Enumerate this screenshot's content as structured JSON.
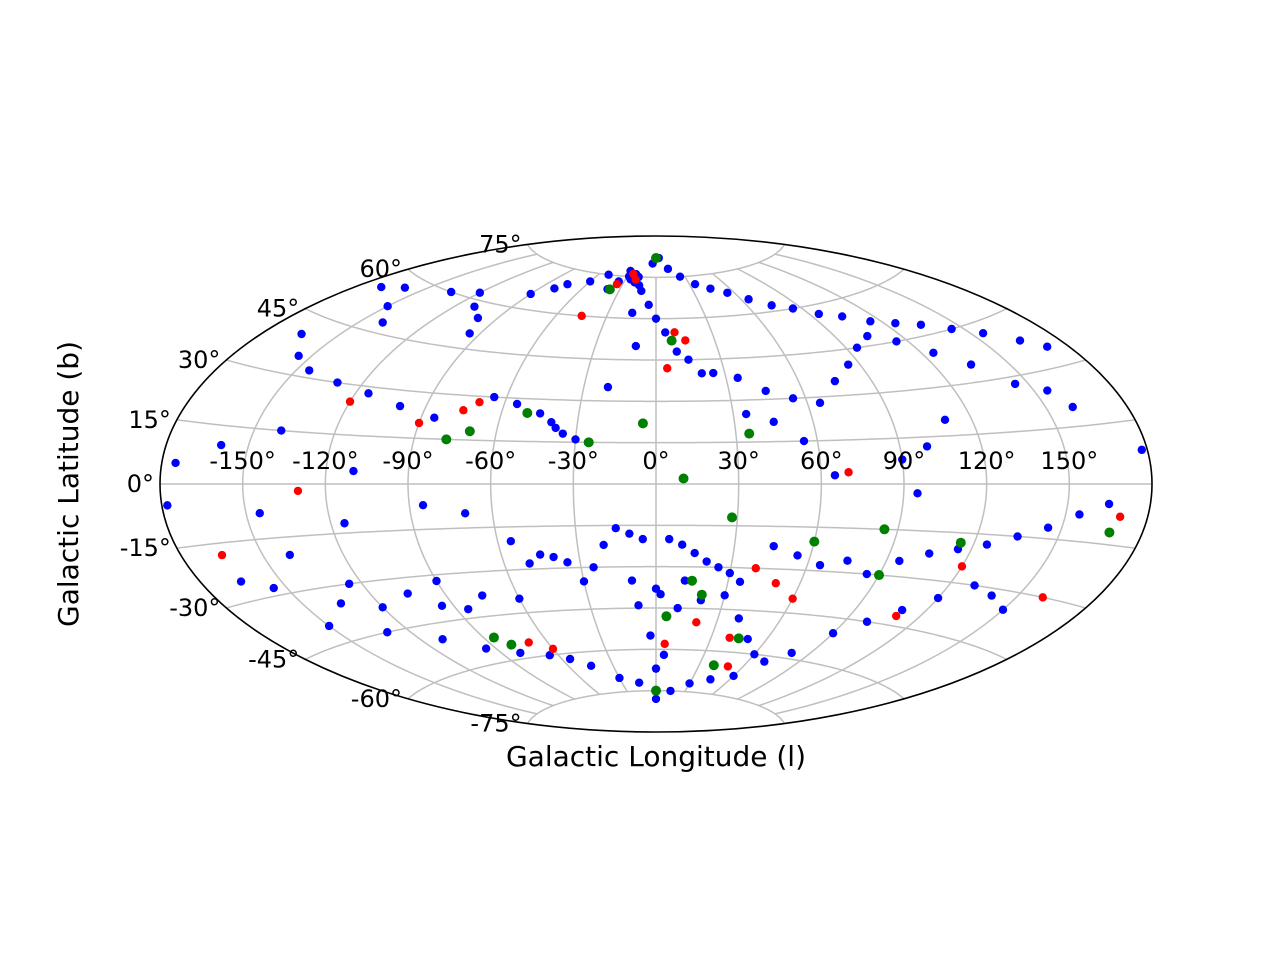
{
  "chart_data": {
    "type": "scatter",
    "projection": "aitoff",
    "title": "",
    "xlabel": "Galactic Longitude (l)",
    "ylabel": "Galactic Latitude (b)",
    "xlim": [
      -180,
      180
    ],
    "ylim": [
      -90,
      90
    ],
    "grid": true,
    "legend": "none",
    "x_ticks": [
      -150,
      -120,
      -90,
      -60,
      -30,
      0,
      30,
      60,
      90,
      120,
      150
    ],
    "x_tick_labels": [
      "-150°",
      "-120°",
      "-90°",
      "-60°",
      "-30°",
      "0°",
      "30°",
      "60°",
      "90°",
      "120°",
      "150°"
    ],
    "y_ticks": [
      -75,
      -60,
      -45,
      -30,
      -15,
      0,
      15,
      30,
      45,
      60,
      75
    ],
    "y_tick_labels": [
      "-75°",
      "-60°",
      "-45°",
      "-30°",
      "-15°",
      "0°",
      "15°",
      "30°",
      "45°",
      "60°",
      "75°"
    ],
    "colors": {
      "blue": "#0000ff",
      "red": "#ff0000",
      "green": "#008000",
      "grid": "#bfbfbf",
      "frame": "#000000"
    },
    "series": [
      {
        "color": "#0000ff",
        "points": [
          [
            -170,
            55
          ],
          [
            -160,
            57
          ],
          [
            -150,
            52
          ],
          [
            -140,
            48
          ],
          [
            -135,
            60
          ],
          [
            -120,
            62
          ],
          [
            -110,
            58
          ],
          [
            -100,
            55
          ],
          [
            -95,
            50
          ],
          [
            -90,
            65
          ],
          [
            -80,
            68
          ],
          [
            -75,
            70
          ],
          [
            -60,
            72
          ],
          [
            -50,
            75
          ],
          [
            -40,
            70
          ],
          [
            -35,
            73
          ],
          [
            -30,
            77
          ],
          [
            -28,
            75
          ],
          [
            -25,
            74
          ],
          [
            -22,
            76
          ],
          [
            -20,
            73
          ],
          [
            -18,
            75
          ],
          [
            -15,
            72
          ],
          [
            -12,
            70
          ],
          [
            -5,
            80
          ],
          [
            5,
            82
          ],
          [
            15,
            78
          ],
          [
            25,
            75
          ],
          [
            35,
            72
          ],
          [
            45,
            70
          ],
          [
            55,
            68
          ],
          [
            65,
            65
          ],
          [
            75,
            62
          ],
          [
            85,
            60
          ],
          [
            95,
            57
          ],
          [
            105,
            55
          ],
          [
            115,
            52
          ],
          [
            125,
            50
          ],
          [
            135,
            48
          ],
          [
            145,
            45
          ],
          [
            155,
            42
          ],
          [
            165,
            38
          ],
          [
            172,
            35
          ],
          [
            -165,
            40
          ],
          [
            -155,
            35
          ],
          [
            -145,
            32
          ],
          [
            -130,
            30
          ],
          [
            -115,
            28
          ],
          [
            -100,
            25
          ],
          [
            -85,
            22
          ],
          [
            -65,
            30
          ],
          [
            -55,
            28
          ],
          [
            -45,
            25
          ],
          [
            -40,
            22
          ],
          [
            -38,
            20
          ],
          [
            -35,
            18
          ],
          [
            -30,
            16
          ],
          [
            -20,
            35
          ],
          [
            -10,
            50
          ],
          [
            5,
            55
          ],
          [
            15,
            45
          ],
          [
            25,
            40
          ],
          [
            35,
            38
          ],
          [
            45,
            33
          ],
          [
            55,
            30
          ],
          [
            65,
            28
          ],
          [
            75,
            35
          ],
          [
            85,
            40
          ],
          [
            95,
            45
          ],
          [
            105,
            48
          ],
          [
            115,
            45
          ],
          [
            125,
            40
          ],
          [
            135,
            35
          ],
          [
            145,
            28
          ],
          [
            155,
            25
          ],
          [
            160,
            20
          ],
          [
            110,
            20
          ],
          [
            100,
            12
          ],
          [
            90,
            8
          ],
          [
            55,
            15
          ],
          [
            45,
            22
          ],
          [
            35,
            25
          ],
          [
            20,
            40
          ],
          [
            10,
            48
          ],
          [
            0,
            60
          ],
          [
            -5,
            65
          ],
          [
            -15,
            62
          ],
          [
            -140,
            15
          ],
          [
            -160,
            10
          ],
          [
            -175,
            5
          ],
          [
            178,
            8
          ],
          [
            65,
            3
          ],
          [
            95,
            -3
          ],
          [
            -110,
            4
          ],
          [
            -178,
            -5
          ],
          [
            -145,
            -8
          ],
          [
            -115,
            -12
          ],
          [
            -85,
            -7
          ],
          [
            -70,
            -10
          ],
          [
            -55,
            -20
          ],
          [
            -45,
            -25
          ],
          [
            -35,
            -28
          ],
          [
            -25,
            -30
          ],
          [
            -20,
            -22
          ],
          [
            -15,
            -16
          ],
          [
            -10,
            -18
          ],
          [
            -5,
            -20
          ],
          [
            5,
            -20
          ],
          [
            10,
            -22
          ],
          [
            15,
            -25
          ],
          [
            20,
            -28
          ],
          [
            25,
            -30
          ],
          [
            30,
            -32
          ],
          [
            35,
            -35
          ],
          [
            45,
            -22
          ],
          [
            55,
            -25
          ],
          [
            65,
            -28
          ],
          [
            75,
            -26
          ],
          [
            85,
            -30
          ],
          [
            95,
            -25
          ],
          [
            105,
            -22
          ],
          [
            115,
            -20
          ],
          [
            125,
            -18
          ],
          [
            135,
            -15
          ],
          [
            145,
            -12
          ],
          [
            155,
            -8
          ],
          [
            165,
            -5
          ],
          [
            -165,
            -25
          ],
          [
            -155,
            -28
          ],
          [
            -140,
            -20
          ],
          [
            -125,
            -30
          ],
          [
            -105,
            -35
          ],
          [
            -90,
            -32
          ],
          [
            -75,
            -38
          ],
          [
            -60,
            -40
          ],
          [
            -50,
            -28
          ],
          [
            -40,
            -26
          ],
          [
            -30,
            -35
          ],
          [
            -10,
            -35
          ],
          [
            0,
            -38
          ],
          [
            10,
            -45
          ],
          [
            20,
            -42
          ],
          [
            30,
            -40
          ],
          [
            40,
            -48
          ],
          [
            50,
            -55
          ],
          [
            60,
            -60
          ],
          [
            70,
            -62
          ],
          [
            80,
            -58
          ],
          [
            90,
            -50
          ],
          [
            100,
            -45
          ],
          [
            110,
            -40
          ],
          [
            120,
            -35
          ],
          [
            130,
            -30
          ],
          [
            140,
            -32
          ],
          [
            150,
            -35
          ],
          [
            -150,
            -40
          ],
          [
            -130,
            -45
          ],
          [
            -110,
            -50
          ],
          [
            -95,
            -55
          ],
          [
            -80,
            -58
          ],
          [
            -65,
            -60
          ],
          [
            -55,
            -62
          ],
          [
            -45,
            -65
          ],
          [
            -30,
            -70
          ],
          [
            -15,
            -72
          ],
          [
            0,
            -78
          ],
          [
            15,
            -75
          ],
          [
            30,
            -72
          ],
          [
            45,
            -70
          ],
          [
            60,
            -68
          ],
          [
            0,
            -67
          ],
          [
            5,
            -62
          ],
          [
            -3,
            -55
          ],
          [
            -8,
            -44
          ],
          [
            2,
            -40
          ],
          [
            12,
            -35
          ],
          [
            -95,
            -40
          ],
          [
            -85,
            -42
          ],
          [
            -120,
            -38
          ],
          [
            -135,
            -35
          ]
        ]
      },
      {
        "color": "#ff0000",
        "points": [
          [
            -25,
            76
          ],
          [
            -20,
            74
          ],
          [
            -35,
            72
          ],
          [
            -45,
            60
          ],
          [
            10,
            55
          ],
          [
            15,
            52
          ],
          [
            5,
            42
          ],
          [
            -120,
            25
          ],
          [
            -90,
            20
          ],
          [
            -75,
            25
          ],
          [
            -70,
            28
          ],
          [
            -130,
            -2
          ],
          [
            -165,
            -18
          ],
          [
            70,
            4
          ],
          [
            170,
            -8
          ],
          [
            120,
            -25
          ],
          [
            160,
            -30
          ],
          [
            40,
            -30
          ],
          [
            50,
            -35
          ],
          [
            60,
            -40
          ],
          [
            110,
            -42
          ],
          [
            -70,
            -55
          ],
          [
            -60,
            -58
          ],
          [
            5,
            -58
          ],
          [
            20,
            -50
          ],
          [
            40,
            -55
          ],
          [
            50,
            -65
          ]
        ]
      },
      {
        "color": "#008000",
        "points": [
          [
            0,
            82
          ],
          [
            -38,
            70
          ],
          [
            8,
            52
          ],
          [
            -50,
            25
          ],
          [
            -5,
            22
          ],
          [
            35,
            18
          ],
          [
            -70,
            18
          ],
          [
            -78,
            15
          ],
          [
            -25,
            15
          ],
          [
            10,
            2
          ],
          [
            28,
            -12
          ],
          [
            60,
            -20
          ],
          [
            85,
            -15
          ],
          [
            115,
            -18
          ],
          [
            168,
            -12
          ],
          [
            90,
            -30
          ],
          [
            15,
            -35
          ],
          [
            20,
            -40
          ],
          [
            5,
            -48
          ],
          [
            45,
            -55
          ],
          [
            -80,
            -55
          ],
          [
            -85,
            -52
          ],
          [
            0,
            -75
          ],
          [
            40,
            -65
          ]
        ]
      }
    ]
  }
}
